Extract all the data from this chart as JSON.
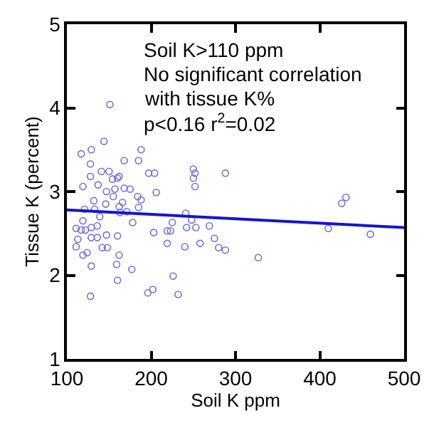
{
  "chart_data": {
    "type": "scatter",
    "xlabel": "Soil K ppm",
    "ylabel": "Tissue K (percent)",
    "annotations": [
      "Soil K>110 ppm",
      "No significant correlation",
      "with tissue K%",
      "p<0.16 r$^{2}$=0.02"
    ],
    "xlim": [
      100,
      500
    ],
    "xticks": [
      100,
      200,
      300,
      400,
      500
    ],
    "ylim": [
      1,
      5
    ],
    "yticks": [
      1,
      2,
      3,
      4,
      5
    ],
    "grid": false,
    "legend": false,
    "series": [
      {
        "marker": "circle",
        "color": "#7070e0",
        "x": [
          151,
          144,
          117,
          129,
          188,
          128,
          168,
          185,
          141,
          150,
          128,
          162,
          197,
          204,
          250,
          252,
          250,
          252,
          288,
          119,
          137,
          154,
          160,
          157,
          168,
          175,
          147,
          206,
          184,
          188,
          132,
          146,
          155,
          166,
          162,
          185,
          121,
          133,
          163,
          171,
          139,
          119,
          136,
          178,
          241,
          248,
          225,
          111,
          117,
          122,
          129,
          242,
          253,
          269,
          203,
          219,
          223,
          147,
          160,
          113,
          129,
          136,
          219,
          275,
          258,
          240,
          280,
          288,
          111,
          142,
          148,
          124,
          119,
          162,
          159,
          327,
          129,
          177,
          226,
          160,
          202,
          196,
          232,
          128,
          431,
          426,
          410,
          460
        ],
        "values": [
          4.04,
          3.6,
          3.45,
          3.5,
          3.5,
          3.33,
          3.37,
          3.37,
          3.24,
          3.24,
          3.18,
          3.18,
          3.22,
          3.22,
          3.27,
          3.22,
          3.16,
          3.06,
          3.22,
          3.06,
          3.08,
          3.15,
          3.16,
          3.03,
          3.04,
          3.03,
          3.0,
          2.99,
          2.94,
          2.9,
          2.89,
          2.85,
          2.94,
          2.87,
          2.82,
          2.81,
          2.79,
          2.79,
          2.75,
          2.76,
          2.7,
          2.65,
          2.59,
          2.63,
          2.74,
          2.66,
          2.63,
          2.56,
          2.54,
          2.54,
          2.57,
          2.57,
          2.57,
          2.59,
          2.51,
          2.53,
          2.53,
          2.48,
          2.47,
          2.43,
          2.45,
          2.45,
          2.38,
          2.44,
          2.38,
          2.34,
          2.33,
          2.3,
          2.34,
          2.33,
          2.33,
          2.27,
          2.24,
          2.24,
          2.13,
          2.21,
          2.11,
          2.07,
          1.99,
          1.94,
          1.83,
          1.79,
          1.77,
          1.75,
          2.93,
          2.86,
          2.56,
          2.49
        ]
      },
      {
        "type": "line",
        "color": "#1414d2",
        "line_style": "solid",
        "x": [
          100,
          500
        ],
        "values": [
          2.78,
          2.57
        ]
      }
    ]
  }
}
